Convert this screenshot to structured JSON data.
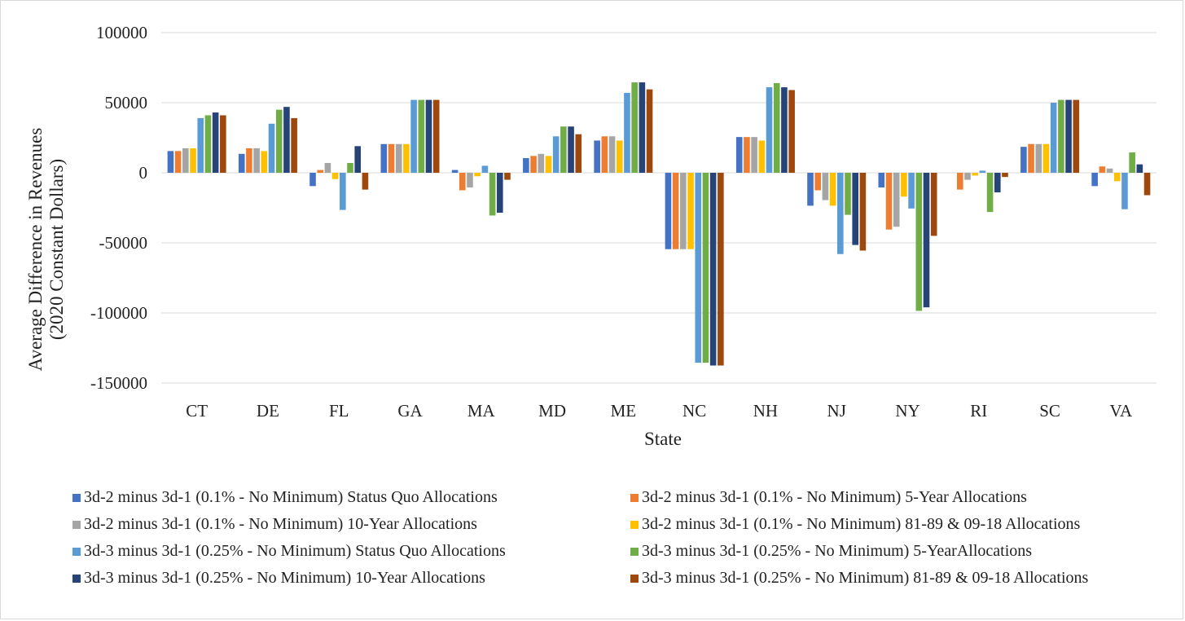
{
  "chart_data": {
    "type": "bar",
    "xlabel": "State",
    "ylabel_lines": [
      "Average Difference in Revenues",
      "(2020 Constant Dollars)"
    ],
    "ylim": [
      -150000,
      100000
    ],
    "yticks": [
      100000,
      50000,
      0,
      -50000,
      -100000,
      -150000
    ],
    "ytick_labels": [
      "100000",
      "50000",
      "0",
      "-50000",
      "-100000",
      "-150000"
    ],
    "grid": true,
    "legend_position": "bottom",
    "categories": [
      "CT",
      "DE",
      "FL",
      "GA",
      "MA",
      "MD",
      "ME",
      "NC",
      "NH",
      "NJ",
      "NY",
      "RI",
      "SC",
      "VA"
    ],
    "series": [
      {
        "name": "3d-2 minus 3d-1 (0.1% - No Minimum) Status Quo Allocations",
        "color": "#4472c4",
        "values": [
          15500,
          13500,
          -9500,
          20500,
          2000,
          10500,
          23000,
          -54500,
          25500,
          -23500,
          -10500,
          0,
          18500,
          -9500
        ]
      },
      {
        "name": "3d-2 minus 3d-1 (0.1% - No Minimum) 5-Year Allocations",
        "color": "#ed7d31",
        "values": [
          15500,
          17500,
          2000,
          20500,
          -12500,
          12000,
          26000,
          -54500,
          25500,
          -12500,
          -40500,
          -12000,
          20500,
          4500
        ]
      },
      {
        "name": "3d-2 minus 3d-1 (0.1% - No Minimum) 10-Year Allocations",
        "color": "#a5a5a5",
        "values": [
          17500,
          17500,
          7000,
          20500,
          -10500,
          13500,
          26000,
          -54500,
          25500,
          -19500,
          -38500,
          -5000,
          20500,
          3000
        ]
      },
      {
        "name": "3d-2 minus 3d-1 (0.1% - No Minimum) 81-89 & 09-18  Allocations",
        "color": "#ffc000",
        "values": [
          17500,
          15500,
          -4500,
          20500,
          -2500,
          12000,
          23000,
          -54500,
          23000,
          -23500,
          -17000,
          -2000,
          20500,
          -6000
        ]
      },
      {
        "name": "3d-3 minus 3d-1 (0.25% - No Minimum) Status Quo Allocations",
        "color": "#5b9bd5",
        "values": [
          39000,
          35000,
          -26500,
          52000,
          5000,
          26000,
          57000,
          -135500,
          61000,
          -58000,
          -25500,
          1500,
          50000,
          -26000
        ]
      },
      {
        "name": "3d-3 minus 3d-1 (0.25% - No Minimum) 5-YearAllocations",
        "color": "#70ad47",
        "values": [
          41000,
          45000,
          7000,
          52000,
          -30500,
          33000,
          64500,
          -135500,
          64000,
          -30000,
          -98500,
          -28000,
          52000,
          14500
        ]
      },
      {
        "name": "3d-3 minus 3d-1 (0.25% - No Minimum) 10-Year Allocations",
        "color": "#264478",
        "values": [
          43000,
          47000,
          19000,
          52000,
          -28500,
          33000,
          64500,
          -137500,
          61000,
          -51500,
          -96000,
          -14000,
          52000,
          6000
        ]
      },
      {
        "name": "3d-3 minus 3d-1 (0.25% - No Minimum) 81-89 & 09-18 Allocations",
        "color": "#9e480e",
        "values": [
          41000,
          39000,
          -12000,
          52000,
          -5000,
          27500,
          59500,
          -137500,
          59000,
          -55500,
          -45000,
          -3000,
          52000,
          -16000
        ]
      }
    ]
  }
}
